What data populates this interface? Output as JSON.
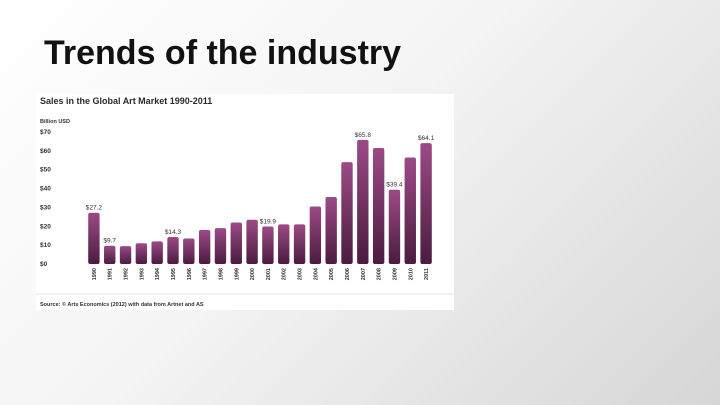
{
  "slide": {
    "title": "Trends of the industry"
  },
  "colors": {
    "bar_top": "#9c4a86",
    "bar_bottom": "#4a1c40",
    "text": "#333333"
  },
  "chart_data": {
    "type": "bar",
    "title": "Sales in the Global Art Market 1990-2011",
    "unit_label": "Billion USD",
    "source": "Source: © Arts Economics (2012) with data from Artnet and AS",
    "categories": [
      "1990",
      "1991",
      "1992",
      "1993",
      "1994",
      "1995",
      "1996",
      "1997",
      "1998",
      "1999",
      "2000",
      "2001",
      "2002",
      "2003",
      "2004",
      "2005",
      "2006",
      "2007",
      "2008",
      "2009",
      "2010",
      "2011"
    ],
    "values": [
      27.2,
      9.7,
      9.5,
      11,
      12,
      14.3,
      13.5,
      18,
      19,
      22,
      23.5,
      19.9,
      21,
      21,
      30.5,
      35.5,
      54,
      65.8,
      61.5,
      39.4,
      56.5,
      64.1
    ],
    "data_labels": [
      {
        "index": 0,
        "text": "$27.2"
      },
      {
        "index": 1,
        "text": "$9.7"
      },
      {
        "index": 5,
        "text": "$14.3"
      },
      {
        "index": 11,
        "text": "$19.9"
      },
      {
        "index": 17,
        "text": "$65.8"
      },
      {
        "index": 19,
        "text": "$39.4"
      },
      {
        "index": 21,
        "text": "$64.1"
      }
    ],
    "yticks": [
      "$0",
      "$10",
      "$20",
      "$30",
      "$40",
      "$50",
      "$60",
      "$70"
    ],
    "ylim": [
      0,
      70
    ],
    "grid": false,
    "legend": "none"
  }
}
